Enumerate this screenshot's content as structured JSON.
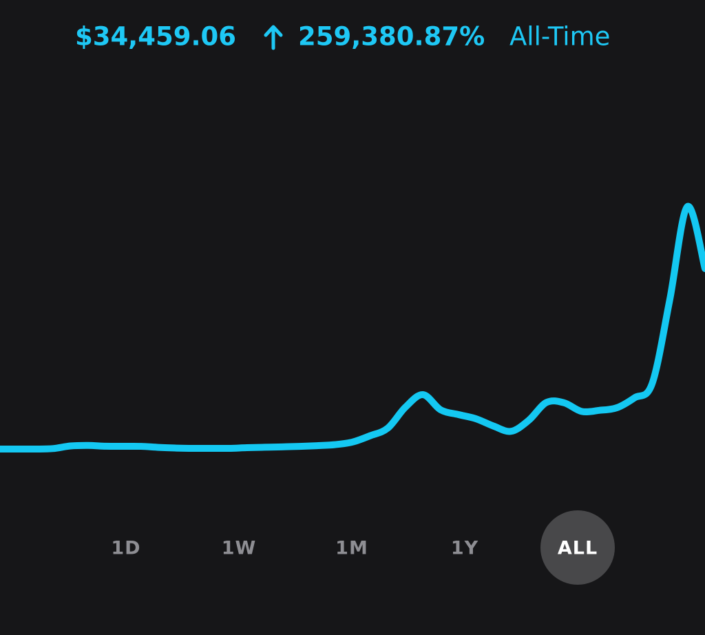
{
  "header": {
    "value": "$34,459.06",
    "change": "259,380.87%",
    "period": "All-Time"
  },
  "chart_data": {
    "type": "line",
    "color": "#14c8f2",
    "values": [
      13,
      13,
      13,
      100,
      600,
      700,
      560,
      540,
      530,
      330,
      200,
      145,
      145,
      145,
      270,
      350,
      430,
      520,
      660,
      850,
      1350,
      2550,
      4000,
      8000,
      10400,
      7500,
      6600,
      5800,
      4400,
      3400,
      5500,
      8900,
      8850,
      7200,
      7400,
      7900,
      9800,
      12500,
      28500,
      46300,
      34459.06
    ],
    "ylim": [
      -6300,
      72600
    ]
  },
  "range_buttons": {
    "options": [
      "1D",
      "1W",
      "1M",
      "1Y",
      "ALL"
    ],
    "selected_index": 4
  }
}
